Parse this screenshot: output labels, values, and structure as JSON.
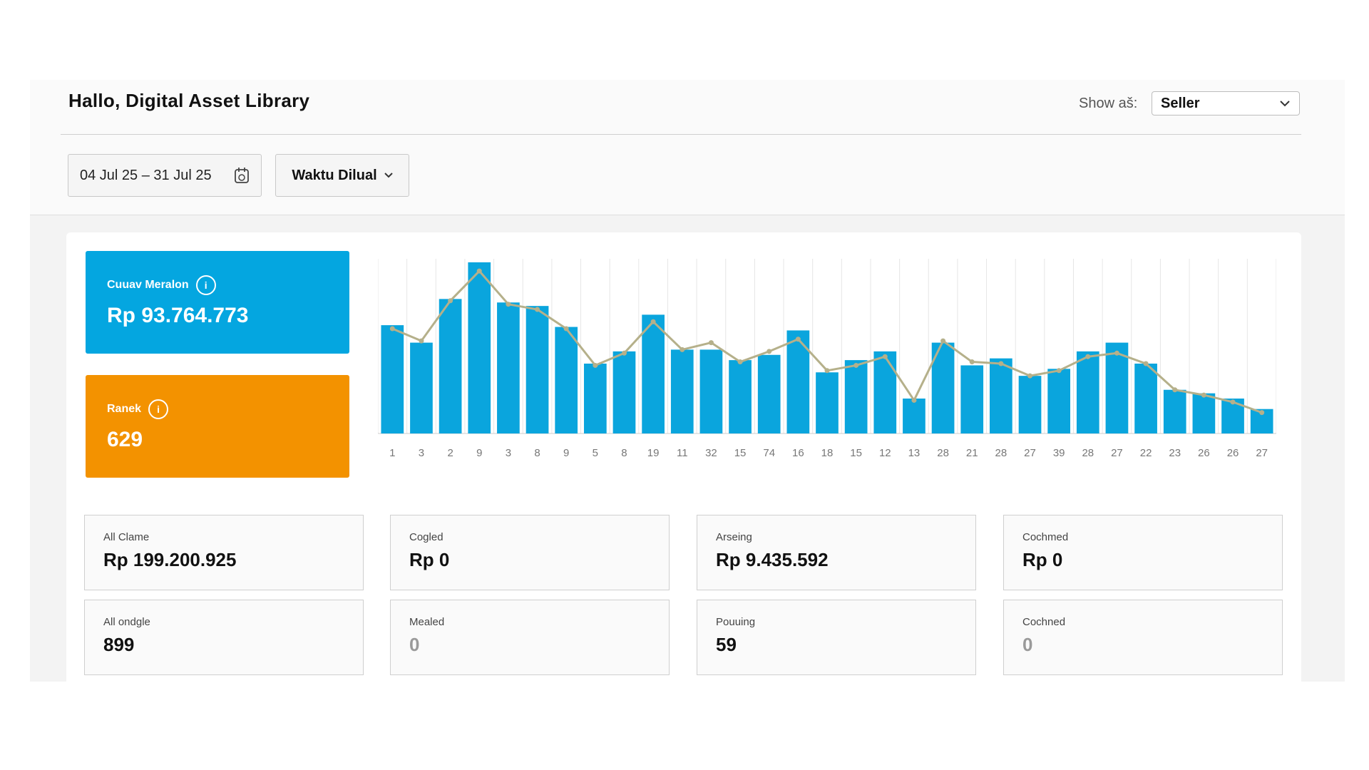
{
  "header": {
    "title": "Hallo, Digital Asset Library",
    "show_as_label": "Show aš:",
    "show_as_value": "Seller"
  },
  "filters": {
    "date_range": "04 Jul 25 – 31 Jul 25",
    "sort_label": "Waktu Dilual"
  },
  "highlights": [
    {
      "label": "Cuuav Meralon",
      "value": "Rp 93.764.773",
      "color": "#04a6e0"
    },
    {
      "label": "Ranek",
      "value": "629",
      "color": "#f39200"
    }
  ],
  "chart_data": {
    "type": "bar",
    "categories": [
      "1",
      "3",
      "2",
      "9",
      "3",
      "8",
      "9",
      "5",
      "8",
      "19",
      "11",
      "32",
      "15",
      "74",
      "16",
      "18",
      "15",
      "12",
      "13",
      "28",
      "21",
      "28",
      "27",
      "39",
      "28",
      "27",
      "22",
      "23",
      "26",
      "26",
      "27"
    ],
    "series": [
      {
        "values": [
          62,
          52,
          77,
          98,
          75,
          73,
          61,
          40,
          47,
          68,
          48,
          48,
          42,
          45,
          59,
          35,
          42,
          47,
          20,
          52,
          39,
          43,
          33,
          37,
          47,
          52,
          40,
          25,
          23,
          20,
          14
        ]
      },
      {
        "type": "line",
        "values": [
          60,
          53,
          76,
          93,
          74,
          71,
          60,
          39,
          46,
          64,
          48,
          52,
          41,
          47,
          54,
          36,
          39,
          44,
          19,
          53,
          41,
          40,
          33,
          36,
          44,
          46,
          40,
          25,
          22,
          18,
          12
        ]
      }
    ],
    "ylim": [
      0,
      100
    ],
    "colors": {
      "bar": "#0aa5dd",
      "line": "#b5b08a",
      "grid": "#e6e6e6"
    }
  },
  "metrics": [
    {
      "label": "All Clame",
      "value": "Rp 199.200.925"
    },
    {
      "label": "Cogled",
      "value": "Rp 0"
    },
    {
      "label": "Arseing",
      "value": "Rp 9.435.592"
    },
    {
      "label": "Cochmed",
      "value": "Rp 0"
    },
    {
      "label": "All ondgle",
      "value": "899"
    },
    {
      "label": "Mealed",
      "value": "0"
    },
    {
      "label": "Pouuing",
      "value": "59"
    },
    {
      "label": "Cochned",
      "value": "0"
    }
  ]
}
